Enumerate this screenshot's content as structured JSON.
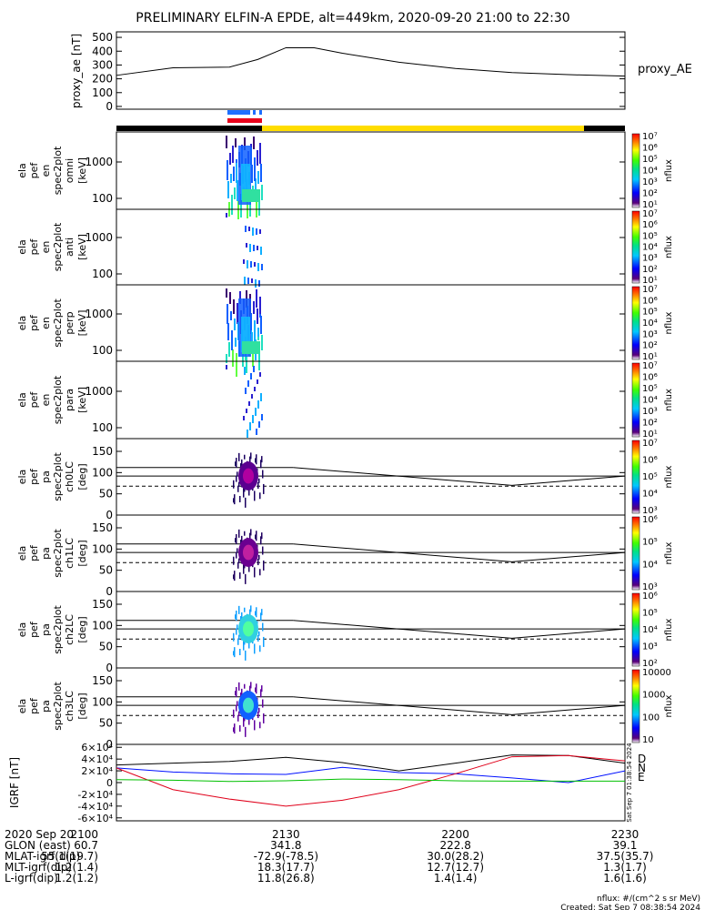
{
  "title": "PRELIMINARY ELFIN-A EPDE, alt=449km, 2020-09-20 21:00 to 22:30",
  "colors": {
    "orbit_bar_black": "#000000",
    "orbit_bar_yellow": "#ffdd00",
    "segment_blue": "#1e6fff",
    "segment_red": "#e8001a",
    "grf_black": "#000000",
    "grf_blue": "#0010ff",
    "grf_red": "#e0001a",
    "grf_green": "#00c000"
  },
  "chart_data": [
    {
      "type": "line",
      "panel": "proxy_ae",
      "ylabel": "proxy_ae [nT]",
      "legend": "proxy_AE",
      "ylim": [
        -20,
        540
      ],
      "yticks": [
        0,
        100,
        200,
        300,
        400,
        500
      ],
      "series": [
        {
          "name": "proxy_AE",
          "x": [
            "21:00",
            "21:10",
            "21:20",
            "21:25",
            "21:30",
            "21:35",
            "21:40",
            "21:50",
            "22:00",
            "22:10",
            "22:20",
            "22:30"
          ],
          "values": [
            225,
            280,
            285,
            340,
            425,
            425,
            385,
            320,
            275,
            245,
            230,
            220
          ]
        }
      ]
    },
    {
      "type": "heatmap",
      "panel": "ela pef en spec2plot omni",
      "ylabel": "ela pef en spec2plot omni [keV]",
      "yscale": "log",
      "yticks": [
        "100",
        "1000"
      ],
      "colorbar": {
        "label": "nflux",
        "ticks": [
          "10¹",
          "10²",
          "10³",
          "10⁴",
          "10⁵",
          "10⁶",
          "10⁷"
        ]
      }
    },
    {
      "type": "heatmap",
      "panel": "ela pef en spec2plot anti",
      "ylabel": "ela pef en spec2plot anti [keV]",
      "yscale": "log",
      "yticks": [
        "100",
        "1000"
      ],
      "colorbar": {
        "label": "nflux",
        "ticks": [
          "10¹",
          "10²",
          "10³",
          "10⁴",
          "10⁵",
          "10⁶",
          "10⁷"
        ]
      }
    },
    {
      "type": "heatmap",
      "panel": "ela pef en spec2plot perp",
      "ylabel": "ela pef en spec2plot perp [keV]",
      "yscale": "log",
      "yticks": [
        "100",
        "1000"
      ],
      "colorbar": {
        "label": "nflux",
        "ticks": [
          "10¹",
          "10²",
          "10³",
          "10⁴",
          "10⁵",
          "10⁶",
          "10⁷"
        ]
      }
    },
    {
      "type": "heatmap",
      "panel": "ela pef en spec2plot para",
      "ylabel": "ela pef en spec2plot para [keV]",
      "yscale": "log",
      "yticks": [
        "100",
        "1000"
      ],
      "colorbar": {
        "label": "nflux",
        "ticks": [
          "10¹",
          "10²",
          "10³",
          "10⁴",
          "10⁵",
          "10⁶",
          "10⁷"
        ]
      }
    },
    {
      "type": "heatmap",
      "panel": "ela pef pa spec2plot ch0LC",
      "ylabel": "ela pef pa spec2plot ch0LC [deg]",
      "ylim": [
        0,
        180
      ],
      "yticks": [
        0,
        50,
        100,
        150
      ],
      "colorbar": {
        "label": "nflux",
        "ticks": [
          "10³",
          "10⁴",
          "10⁵",
          "10⁶",
          "10⁷"
        ]
      }
    },
    {
      "type": "heatmap",
      "panel": "ela pef pa spec2plot ch1LC",
      "ylabel": "ela pef pa spec2plot ch1LC [deg]",
      "ylim": [
        0,
        180
      ],
      "yticks": [
        0,
        50,
        100,
        150
      ],
      "colorbar": {
        "label": "nflux",
        "ticks": [
          "10³",
          "10⁴",
          "10⁵",
          "10⁶"
        ]
      }
    },
    {
      "type": "heatmap",
      "panel": "ela pef pa spec2plot ch2LC",
      "ylabel": "ela pef pa spec2plot ch2LC [deg]",
      "ylim": [
        0,
        180
      ],
      "yticks": [
        0,
        50,
        100,
        150
      ],
      "colorbar": {
        "label": "nflux",
        "ticks": [
          "10²",
          "10³",
          "10⁴",
          "10⁵",
          "10⁶"
        ]
      }
    },
    {
      "type": "heatmap",
      "panel": "ela pef pa spec2plot ch3LC",
      "ylabel": "ela pef pa spec2plot ch3LC [deg]",
      "ylim": [
        0,
        180
      ],
      "yticks": [
        0,
        50,
        100,
        150
      ],
      "colorbar": {
        "label": "nflux",
        "ticks": [
          "10",
          "100",
          "1000",
          "10000"
        ]
      }
    },
    {
      "type": "line",
      "panel": "IGRF",
      "ylabel": "IGRF [nT]",
      "ylim": [
        -65000,
        65000
      ],
      "yticks": [
        "-6×10⁴",
        "-4×10⁴",
        "-2×10⁴",
        "0",
        "2×10⁴",
        "4×10⁴",
        "6×10⁴"
      ],
      "legend": [
        "D",
        "N",
        "E"
      ],
      "side_note": "Sat Sep  7 01:38:54 2024",
      "series": [
        {
          "name": "D",
          "x": [
            "21:00",
            "21:10",
            "21:20",
            "21:30",
            "21:40",
            "21:50",
            "22:00",
            "22:10",
            "22:20",
            "22:30"
          ],
          "values": [
            30000,
            33000,
            36000,
            43000,
            34000,
            20000,
            33000,
            47000,
            46000,
            33000
          ]
        },
        {
          "name": "N",
          "x": [
            "21:00",
            "21:10",
            "21:20",
            "21:30",
            "21:40",
            "21:50",
            "22:00",
            "22:10",
            "22:20",
            "22:30"
          ],
          "values": [
            25000,
            18000,
            15000,
            14000,
            26000,
            17000,
            15000,
            8000,
            0,
            20000
          ]
        },
        {
          "name": "E",
          "x": [
            "21:00",
            "21:10",
            "21:20",
            "21:30",
            "21:40",
            "21:50",
            "22:00",
            "22:10",
            "22:20",
            "22:30"
          ],
          "values": [
            25000,
            -12000,
            -28000,
            -40000,
            -30000,
            -12000,
            15000,
            44000,
            46000,
            37000
          ]
        },
        {
          "name": "",
          "x": [
            "21:00",
            "21:10",
            "21:20",
            "21:30",
            "21:40",
            "21:50",
            "22:00",
            "22:10",
            "22:20",
            "22:30"
          ],
          "values": [
            5000,
            4000,
            2000,
            3000,
            6000,
            5000,
            3000,
            2500,
            2500,
            2500
          ]
        }
      ]
    }
  ],
  "footer": {
    "rows": [
      [
        "2020 Sep 20",
        "2100",
        "2130",
        "2200",
        "2230"
      ],
      [
        "GLON (east)",
        "60.7",
        "341.8",
        "222.8",
        "39.1"
      ],
      [
        "MLAT-igrf(dip)",
        "55.1(19.7)",
        "-72.9(-78.5)",
        "30.0(28.2)",
        "37.5(35.7)"
      ],
      [
        "MLT-igrf(dip)",
        "1.2(1.4)",
        "18.3(17.7)",
        "12.7(12.7)",
        "1.3(1.7)"
      ],
      [
        "L-igrf(dip)",
        "1.2(1.2)",
        "11.8(26.8)",
        "1.4(1.4)",
        "1.6(1.6)"
      ]
    ],
    "nflux_units": "nflux: #/(cm^2 s sr MeV)",
    "created": "Created: Sat Sep  7 08:38:54 2024"
  }
}
